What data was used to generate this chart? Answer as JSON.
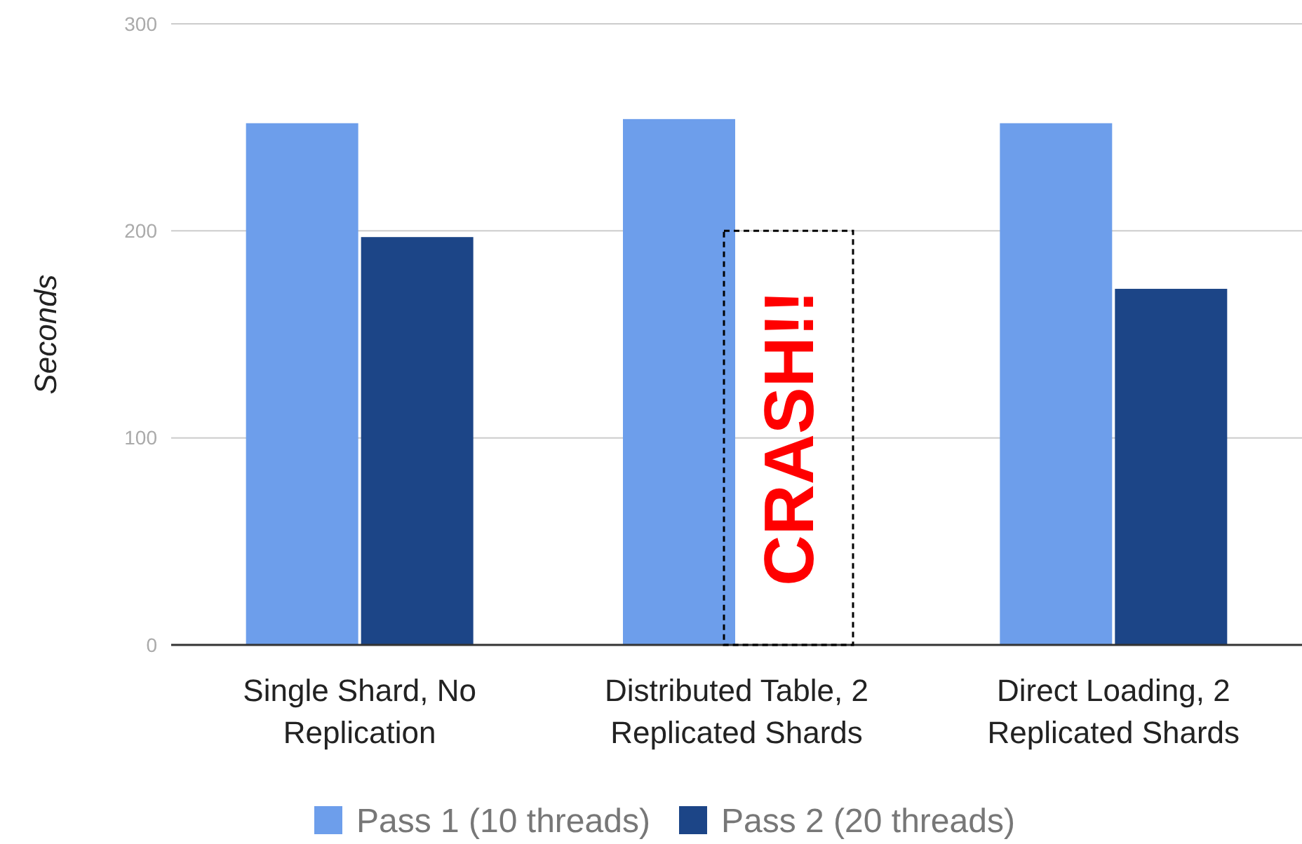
{
  "chart_data": {
    "type": "bar",
    "ylabel": "Seconds",
    "categories": [
      "Single Shard, No Replication",
      "Distributed Table, 2 Replicated Shards",
      "Direct Loading, 2 Replicated Shards"
    ],
    "series": [
      {
        "name": "Pass 1 (10 threads)",
        "color": "#6d9eeb",
        "values": [
          252,
          254,
          252
        ]
      },
      {
        "name": "Pass 2 (20 threads)",
        "color": "#1c4587",
        "values": [
          197,
          null,
          172
        ]
      }
    ],
    "ylim": [
      0,
      300
    ],
    "yticks": [
      0,
      100,
      200,
      300
    ],
    "grid": "y",
    "legend": "bottom",
    "annotations": [
      {
        "text": "CRASH!!",
        "x": "Distributed Table, 2 Replicated Shards",
        "y": 200
      }
    ]
  }
}
